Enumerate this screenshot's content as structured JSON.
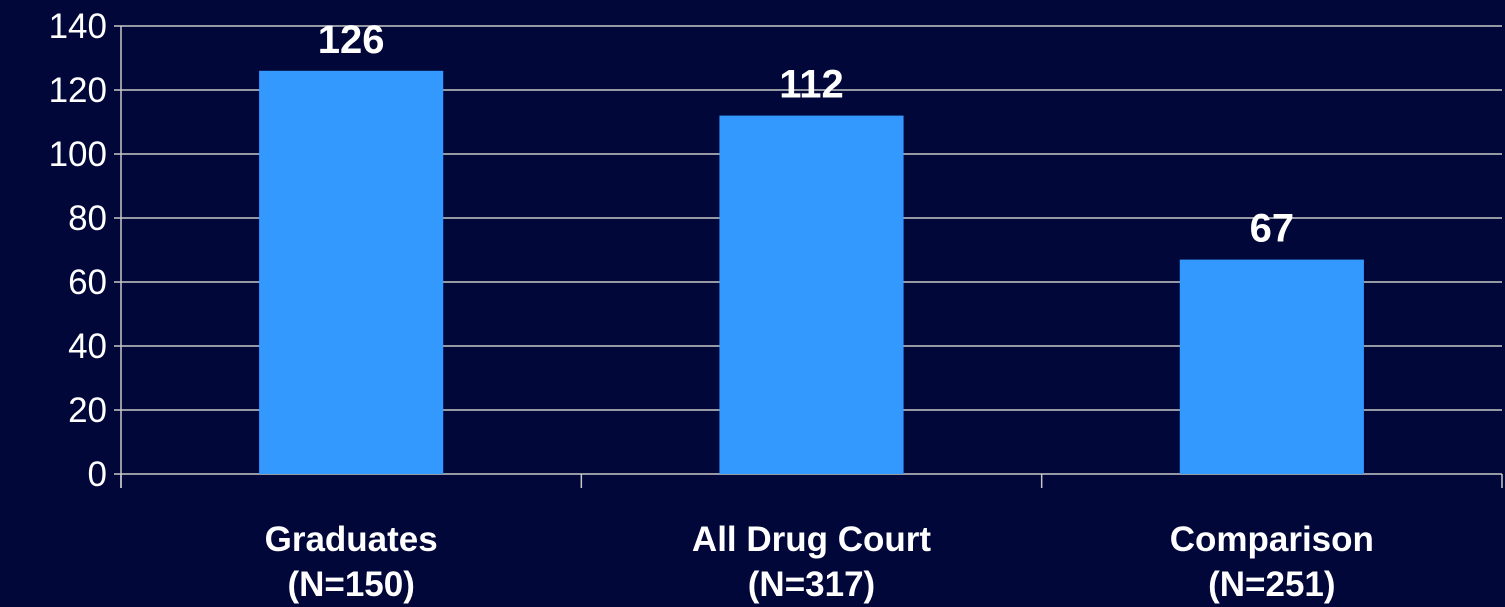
{
  "chart_data": {
    "type": "bar",
    "categories": [
      [
        "Graduates",
        "(N=150)"
      ],
      [
        "All Drug Court",
        "(N=317)"
      ],
      [
        "Comparison",
        "(N=251)"
      ]
    ],
    "values": [
      126,
      112,
      67
    ],
    "data_labels": [
      "126",
      "112",
      "67"
    ],
    "y_ticks": [
      "0",
      "20",
      "40",
      "60",
      "80",
      "100",
      "120",
      "140"
    ],
    "ylim": [
      0,
      140
    ],
    "grid": true,
    "legend": "none",
    "title": "",
    "xlabel": "",
    "ylabel": ""
  },
  "colors": {
    "background": "#02073a",
    "bar": "#3399ff",
    "gridline": "#c8c8c8",
    "text": "#ffffff"
  }
}
